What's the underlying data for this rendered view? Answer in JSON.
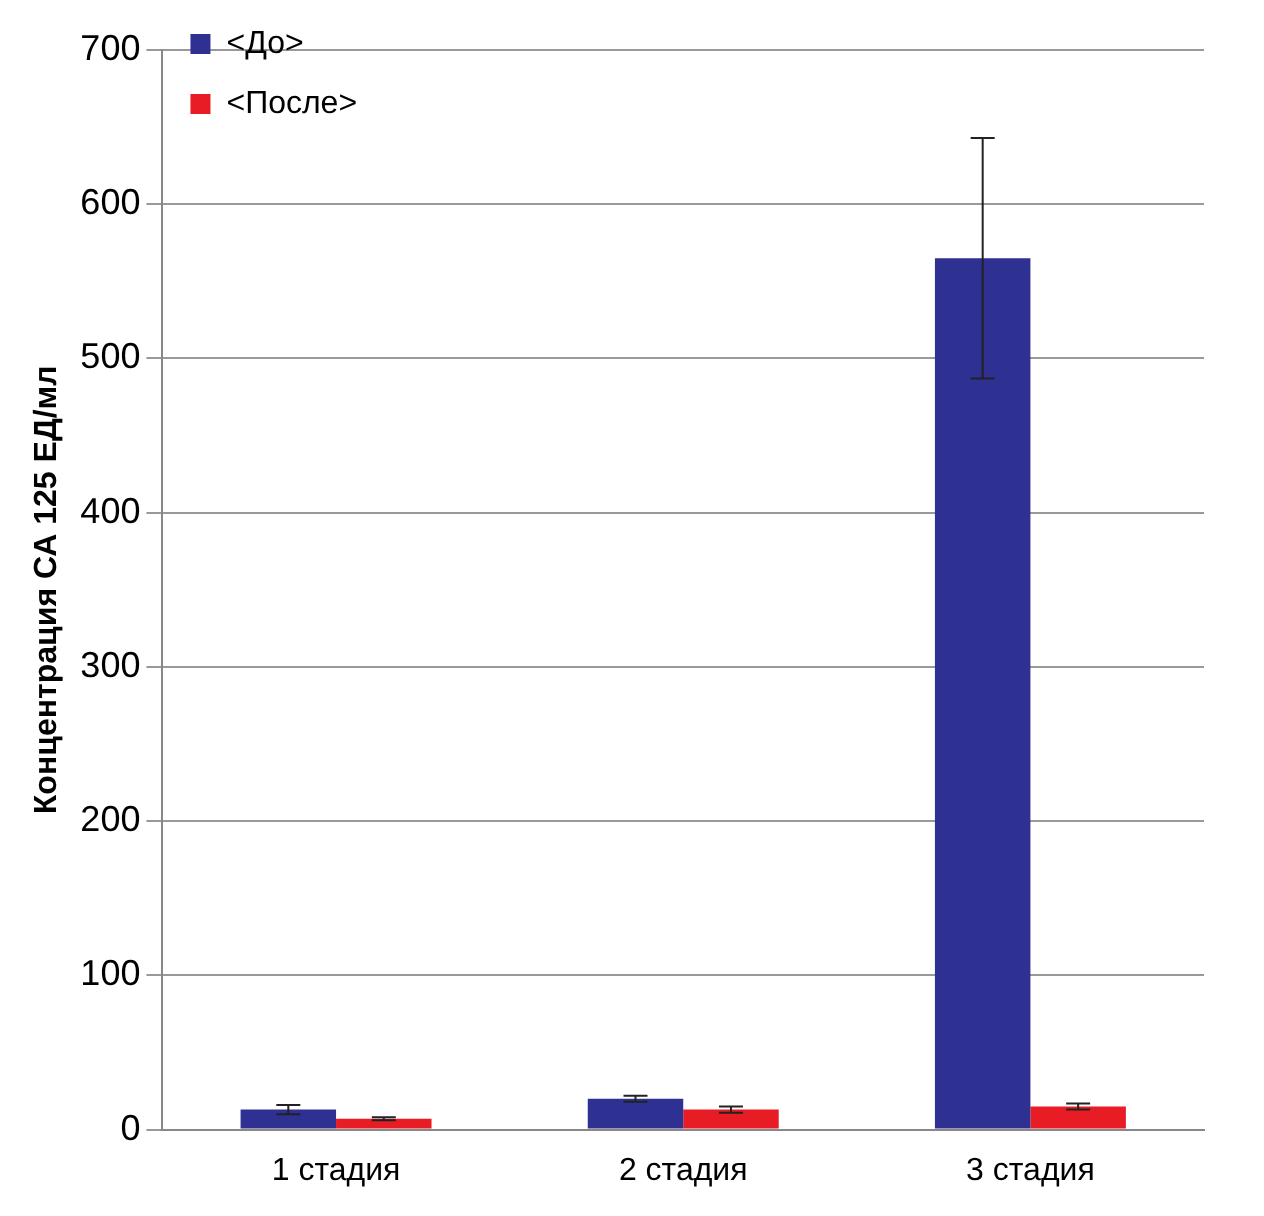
{
  "chart_data": {
    "type": "bar",
    "ylabel": "Концентрация СА 125 ЕД/мл",
    "categories": [
      "1 стадия",
      "2 стадия",
      "3 стадия"
    ],
    "series": [
      {
        "name": "<До>",
        "color": "#2e3192",
        "values": [
          13,
          20,
          565
        ],
        "errors": [
          3,
          2,
          78
        ]
      },
      {
        "name": "<После>",
        "color": "#e81c24",
        "values": [
          7,
          13,
          15
        ],
        "errors": [
          1,
          2,
          2
        ]
      }
    ],
    "ylim": [
      0,
      700
    ],
    "yticks": [
      0,
      100,
      200,
      300,
      400,
      500,
      600,
      700
    ],
    "grid": "y",
    "legend": "top left"
  }
}
